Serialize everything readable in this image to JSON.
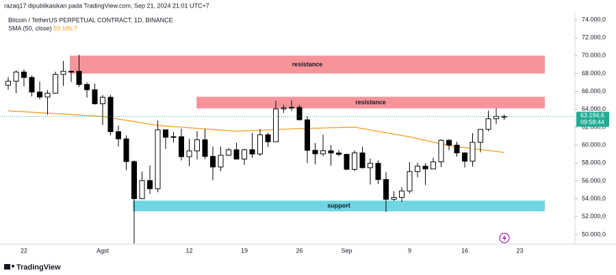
{
  "publisher": "razaq17 dipublikasikan pada TradingView.com, Sep 21, 2024 21:01 UTC+7",
  "brand": "TradingView",
  "chart_data": {
    "type": "candlestick",
    "title": "Bitcoin / TetherUS PERPETUAL CONTRACT, 1D, BINANCE",
    "categories": [
      null,
      null,
      "22",
      null,
      null,
      null,
      null,
      null,
      null,
      null,
      null,
      null,
      "Agst",
      null,
      null,
      null,
      null,
      null,
      null,
      null,
      null,
      null,
      null,
      "12",
      null,
      null,
      null,
      null,
      null,
      null,
      "19",
      null,
      null,
      null,
      null,
      null,
      null,
      "26",
      null,
      null,
      null,
      null,
      null,
      "Sep",
      null,
      null,
      null,
      null,
      null,
      null,
      null,
      "9",
      null,
      null,
      null,
      null,
      null,
      null,
      "16",
      null,
      null,
      null,
      null,
      null,
      null,
      "23",
      null,
      null,
      null
    ],
    "open": [
      66680,
      67140,
      68170,
      67560,
      65930,
      65370,
      65800,
      67900,
      68250,
      68250,
      66780,
      66190,
      64620,
      65350,
      61500,
      60700,
      58160,
      54020,
      56040,
      55130,
      61710,
      60880,
      60940,
      58710,
      59350,
      60600,
      58740,
      57560,
      58870,
      59480,
      58440,
      59490,
      59010,
      61160,
      60380,
      64050,
      64160,
      64220,
      62830,
      59420,
      59030,
      59370,
      59120,
      58970,
      57300,
      59130,
      57480,
      57970,
      56160,
      53950,
      54160,
      54880,
      57050,
      57650,
      57340,
      58130,
      60540,
      60000,
      59130,
      58210,
      60310,
      61760,
      62940,
      63200,
      null,
      null,
      null,
      null,
      null
    ],
    "high": [
      67600,
      68370,
      68480,
      67800,
      67100,
      66170,
      68200,
      69400,
      68320,
      70080,
      67000,
      66880,
      65590,
      65600,
      62200,
      61100,
      58300,
      57050,
      57730,
      62750,
      61750,
      61470,
      61850,
      60700,
      61570,
      61800,
      59850,
      59830,
      59700,
      60260,
      59600,
      61400,
      61800,
      61400,
      64950,
      64500,
      65000,
      64480,
      63200,
      60230,
      61170,
      59990,
      59450,
      59040,
      59400,
      59800,
      58500,
      58300,
      56980,
      54850,
      55300,
      58100,
      58050,
      57990,
      58600,
      60650,
      60660,
      60380,
      59200,
      61350,
      61800,
      63850,
      64130,
      63400,
      null,
      null,
      null,
      null,
      null
    ],
    "low": [
      66200,
      65800,
      66570,
      65440,
      65100,
      63400,
      65750,
      66600,
      67050,
      66500,
      65300,
      64530,
      62250,
      61100,
      59850,
      57200,
      49000,
      53970,
      54560,
      54730,
      59570,
      60280,
      58290,
      57650,
      58410,
      58430,
      56080,
      57100,
      58780,
      58400,
      57800,
      58600,
      58780,
      59800,
      60350,
      63600,
      63800,
      62800,
      58000,
      57850,
      58770,
      57700,
      58750,
      57200,
      57120,
      57400,
      55600,
      55650,
      52550,
      53740,
      53650,
      54600,
      56400,
      55550,
      57330,
      57550,
      59450,
      58700,
      57500,
      57600,
      59200,
      61560,
      62350,
      62800,
      null,
      null,
      null,
      null,
      null
    ],
    "close": [
      67140,
      68170,
      67560,
      65930,
      65370,
      65800,
      67900,
      68250,
      68250,
      66780,
      66190,
      64620,
      65350,
      61500,
      60700,
      58160,
      54020,
      56040,
      55130,
      61710,
      60880,
      60940,
      58710,
      59350,
      60600,
      58740,
      57560,
      58870,
      59480,
      58440,
      59490,
      59010,
      61160,
      60380,
      64050,
      64160,
      64220,
      62830,
      59420,
      59030,
      59370,
      59120,
      58970,
      57300,
      59130,
      57480,
      57970,
      56160,
      53950,
      54160,
      54880,
      57050,
      57650,
      57340,
      58130,
      60540,
      60000,
      59130,
      58210,
      60310,
      61760,
      62940,
      63200,
      63194.6,
      null,
      null,
      null,
      null,
      null
    ],
    "up_color": "#ffffff",
    "down_color": "#000000",
    "wick_color": "#000000",
    "last_price_label": "63.194,6",
    "countdown": "09:58:44",
    "last_price_color": "#22ab94",
    "sma": {
      "name": "SMA (50, close)",
      "color": "#f59c1a",
      "value_label": "59.186,7",
      "values": [
        63835,
        63780,
        63730,
        63680,
        63625,
        63570,
        63520,
        63465,
        63410,
        63360,
        63305,
        63250,
        63200,
        63060,
        62910,
        62770,
        62630,
        62490,
        62340,
        62200,
        62135,
        62070,
        62005,
        61940,
        61875,
        61810,
        61745,
        61680,
        61615,
        61550,
        61590,
        61625,
        61665,
        61700,
        61740,
        61775,
        61810,
        61850,
        61870,
        61895,
        61915,
        61935,
        61960,
        61980,
        62000,
        61850,
        61695,
        61540,
        61390,
        61235,
        61085,
        60930,
        60730,
        60535,
        60335,
        60140,
        59940,
        59830,
        59725,
        59615,
        59510,
        59400,
        59290,
        59186.7,
        null,
        null,
        null,
        null,
        null
      ]
    },
    "zones": [
      {
        "label": "resistance",
        "top": 70000,
        "bottom": 68000,
        "color": "#f7949b"
      },
      {
        "label": "resistance",
        "top": 65400,
        "bottom": 64100,
        "color": "#f7949b"
      },
      {
        "label": "support",
        "top": 53800,
        "bottom": 52600,
        "color": "#6fd6e2"
      }
    ],
    "ylim": [
      49000,
      75100
    ],
    "yticks": [
      {
        "value": 50000,
        "label": "50.000,0"
      },
      {
        "value": 52000,
        "label": "52.000,0"
      },
      {
        "value": 54000,
        "label": "54.000,0"
      },
      {
        "value": 56000,
        "label": "56.000,0"
      },
      {
        "value": 58000,
        "label": "58.000,0"
      },
      {
        "value": 60000,
        "label": "60.000,0"
      },
      {
        "value": 62000,
        "label": "62.000,0"
      },
      {
        "value": 64000,
        "label": "64.000,0"
      },
      {
        "value": 66000,
        "label": "66.000,0"
      },
      {
        "value": 68000,
        "label": "68.000,0"
      },
      {
        "value": 70000,
        "label": "70.000,0"
      },
      {
        "value": 72000,
        "label": "72.000,0"
      },
      {
        "value": 74000,
        "label": "74.000,0"
      }
    ]
  }
}
